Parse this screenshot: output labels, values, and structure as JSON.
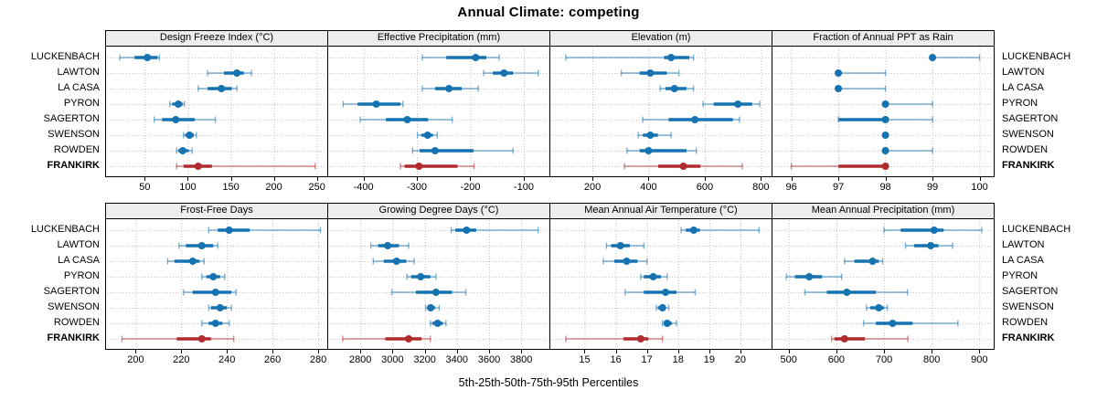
{
  "title": "Annual Climate: competing",
  "caption": "5th-25th-50th-75th-95th Percentiles",
  "percentiles": [
    "5th",
    "25th",
    "50th",
    "75th",
    "95th"
  ],
  "row_labels": [
    "LUCKENBACH",
    "LAWTON",
    "LA CASA",
    "PYRON",
    "SAGERTON",
    "SWENSON",
    "ROWDEN",
    "FRANKIRK"
  ],
  "highlight": "FRANKIRK",
  "colors": {
    "series": "#1673b1",
    "highlight": "#b12a2e",
    "grid": "#c3c3c3",
    "strip_bg": "#ededed",
    "border": "#000000"
  },
  "chart_data": [
    {
      "type": "dotplot-percentiles",
      "row": 0,
      "col": 0,
      "slug": "design-freeze-index",
      "title": "Design Freeze Index (°C)",
      "xlim": [
        5,
        262
      ],
      "ticks": [
        50,
        100,
        150,
        200,
        250
      ],
      "series": [
        {
          "name": "LUCKENBACH",
          "p": [
            21,
            38,
            53,
            65,
            67
          ]
        },
        {
          "name": "LAWTON",
          "p": [
            123,
            142,
            157,
            165,
            174
          ]
        },
        {
          "name": "LA CASA",
          "p": [
            112,
            123,
            139,
            151,
            157
          ]
        },
        {
          "name": "PYRON",
          "p": [
            79,
            82,
            89,
            94,
            96
          ]
        },
        {
          "name": "SAGERTON",
          "p": [
            61,
            70,
            86,
            108,
            132
          ]
        },
        {
          "name": "SWENSON",
          "p": [
            95,
            97,
            102,
            107,
            110
          ]
        },
        {
          "name": "ROWDEN",
          "p": [
            87,
            89,
            94,
            101,
            105
          ]
        },
        {
          "name": "FRANKIRK",
          "p": [
            87,
            95,
            112,
            128,
            248
          ]
        }
      ]
    },
    {
      "type": "dotplot-percentiles",
      "row": 0,
      "col": 1,
      "slug": "effective-precipitation",
      "title": "Effective Precipitation (mm)",
      "xlim": [
        -466,
        -52
      ],
      "ticks": [
        -400,
        -300,
        -200,
        -100
      ],
      "series": [
        {
          "name": "LUCKENBACH",
          "p": [
            -290,
            -245,
            -190,
            -170,
            -146
          ]
        },
        {
          "name": "LAWTON",
          "p": [
            -175,
            -158,
            -137,
            -120,
            -73
          ]
        },
        {
          "name": "LA CASA",
          "p": [
            -290,
            -266,
            -240,
            -216,
            -185
          ]
        },
        {
          "name": "PYRON",
          "p": [
            -438,
            -411,
            -376,
            -331,
            -326
          ]
        },
        {
          "name": "SAGERTON",
          "p": [
            -406,
            -358,
            -318,
            -279,
            -234
          ]
        },
        {
          "name": "SWENSON",
          "p": [
            -299,
            -292,
            -280,
            -270,
            -262
          ]
        },
        {
          "name": "ROWDEN",
          "p": [
            -308,
            -295,
            -266,
            -194,
            -120
          ]
        },
        {
          "name": "FRANKIRK",
          "p": [
            -331,
            -323,
            -296,
            -224,
            -193
          ]
        }
      ]
    },
    {
      "type": "dotplot-percentiles",
      "row": 0,
      "col": 2,
      "slug": "elevation",
      "title": "Elevation (m)",
      "xlim": [
        50,
        838
      ],
      "ticks": [
        200,
        400,
        600,
        800
      ],
      "series": [
        {
          "name": "LUCKENBACH",
          "p": [
            105,
            455,
            480,
            545,
            560
          ]
        },
        {
          "name": "LAWTON",
          "p": [
            303,
            368,
            406,
            465,
            508
          ]
        },
        {
          "name": "LA CASA",
          "p": [
            441,
            460,
            492,
            535,
            560
          ]
        },
        {
          "name": "PYRON",
          "p": [
            594,
            632,
            718,
            769,
            796
          ]
        },
        {
          "name": "SAGERTON",
          "p": [
            379,
            471,
            565,
            700,
            724
          ]
        },
        {
          "name": "SWENSON",
          "p": [
            363,
            380,
            406,
            433,
            480
          ]
        },
        {
          "name": "ROWDEN",
          "p": [
            323,
            368,
            400,
            535,
            570
          ]
        },
        {
          "name": "FRANKIRK",
          "p": [
            314,
            434,
            524,
            585,
            734
          ]
        }
      ]
    },
    {
      "type": "dotplot-percentiles",
      "row": 0,
      "col": 3,
      "slug": "fraction-ppt-rain",
      "title": "Fraction of Annual PPT as Rain",
      "xlim": [
        95.6,
        100.3
      ],
      "ticks": [
        96,
        97,
        98,
        99,
        100
      ],
      "series": [
        {
          "name": "LUCKENBACH",
          "p": [
            99,
            99,
            99,
            99,
            100
          ]
        },
        {
          "name": "LAWTON",
          "p": [
            97,
            97,
            97,
            97,
            98
          ]
        },
        {
          "name": "LA CASA",
          "p": [
            97,
            97,
            97,
            97,
            98
          ]
        },
        {
          "name": "PYRON",
          "p": [
            98,
            98,
            98,
            98,
            99
          ]
        },
        {
          "name": "SAGERTON",
          "p": [
            97,
            97,
            98,
            98,
            99
          ]
        },
        {
          "name": "SWENSON",
          "p": [
            98,
            98,
            98,
            98,
            98
          ]
        },
        {
          "name": "ROWDEN",
          "p": [
            98,
            98,
            98,
            98,
            99
          ]
        },
        {
          "name": "FRANKIRK",
          "p": [
            96,
            97,
            98,
            98,
            98
          ]
        }
      ]
    },
    {
      "type": "dotplot-percentiles",
      "row": 1,
      "col": 0,
      "slug": "frost-free-days",
      "title": "Frost-Free Days",
      "xlim": [
        187,
        284
      ],
      "ticks": [
        200,
        220,
        240,
        260,
        280
      ],
      "series": [
        {
          "name": "LUCKENBACH",
          "p": [
            232,
            236,
            241,
            250,
            281
          ]
        },
        {
          "name": "LAWTON",
          "p": [
            219,
            222,
            229,
            234,
            236
          ]
        },
        {
          "name": "LA CASA",
          "p": [
            214,
            217,
            225,
            228,
            230
          ]
        },
        {
          "name": "PYRON",
          "p": [
            229,
            231,
            234,
            237,
            239
          ]
        },
        {
          "name": "SAGERTON",
          "p": [
            221,
            225,
            235,
            242,
            244
          ]
        },
        {
          "name": "SWENSON",
          "p": [
            232,
            233,
            237,
            240,
            242
          ]
        },
        {
          "name": "ROWDEN",
          "p": [
            229,
            232,
            235,
            238,
            241
          ]
        },
        {
          "name": "FRANKIRK",
          "p": [
            194,
            218,
            229,
            233,
            243
          ]
        }
      ]
    },
    {
      "type": "dotplot-percentiles",
      "row": 1,
      "col": 1,
      "slug": "growing-degree-days",
      "title": "Growing Degree Days (°C)",
      "xlim": [
        2600,
        3975
      ],
      "ticks": [
        2800,
        3000,
        3200,
        3400,
        3600,
        3800
      ],
      "series": [
        {
          "name": "LUCKENBACH",
          "p": [
            3365,
            3390,
            3460,
            3520,
            3905
          ]
        },
        {
          "name": "LAWTON",
          "p": [
            2865,
            2910,
            2970,
            3040,
            3100
          ]
        },
        {
          "name": "LA CASA",
          "p": [
            2880,
            2945,
            3025,
            3085,
            3135
          ]
        },
        {
          "name": "PYRON",
          "p": [
            3090,
            3115,
            3175,
            3235,
            3270
          ]
        },
        {
          "name": "SAGERTON",
          "p": [
            2995,
            3145,
            3270,
            3370,
            3455
          ]
        },
        {
          "name": "SWENSON",
          "p": [
            3205,
            3215,
            3237,
            3265,
            3290
          ]
        },
        {
          "name": "ROWDEN",
          "p": [
            3235,
            3247,
            3280,
            3313,
            3332
          ]
        },
        {
          "name": "FRANKIRK",
          "p": [
            2690,
            2955,
            3100,
            3180,
            3235
          ]
        }
      ]
    },
    {
      "type": "dotplot-percentiles",
      "row": 1,
      "col": 2,
      "slug": "mean-annual-air-temperature",
      "title": "Mean Annual Air Temperature (°C)",
      "xlim": [
        13.9,
        21.0
      ],
      "ticks": [
        15,
        16,
        17,
        18,
        19,
        20
      ],
      "series": [
        {
          "name": "LUCKENBACH",
          "p": [
            18.1,
            18.25,
            18.5,
            18.7,
            20.6
          ]
        },
        {
          "name": "LAWTON",
          "p": [
            15.7,
            15.85,
            16.15,
            16.45,
            16.9
          ]
        },
        {
          "name": "LA CASA",
          "p": [
            15.6,
            15.95,
            16.35,
            16.7,
            17.0
          ]
        },
        {
          "name": "PYRON",
          "p": [
            16.8,
            16.9,
            17.2,
            17.45,
            17.65
          ]
        },
        {
          "name": "SAGERTON",
          "p": [
            16.3,
            16.9,
            17.6,
            17.95,
            18.55
          ]
        },
        {
          "name": "SWENSON",
          "p": [
            17.3,
            17.35,
            17.5,
            17.6,
            17.7
          ]
        },
        {
          "name": "ROWDEN",
          "p": [
            17.5,
            17.55,
            17.65,
            17.8,
            17.95
          ]
        },
        {
          "name": "FRANKIRK",
          "p": [
            14.4,
            16.25,
            16.8,
            17.05,
            17.5
          ]
        }
      ]
    },
    {
      "type": "dotplot-percentiles",
      "row": 1,
      "col": 3,
      "slug": "mean-annual-precipitation",
      "title": "Mean Annual Precipitation (mm)",
      "xlim": [
        466,
        930
      ],
      "ticks": [
        500,
        600,
        700,
        800,
        900
      ],
      "series": [
        {
          "name": "LUCKENBACH",
          "p": [
            700,
            735,
            805,
            825,
            905
          ]
        },
        {
          "name": "LAWTON",
          "p": [
            745,
            763,
            798,
            814,
            844
          ]
        },
        {
          "name": "LA CASA",
          "p": [
            617,
            638,
            676,
            689,
            697
          ]
        },
        {
          "name": "PYRON",
          "p": [
            495,
            513,
            543,
            570,
            611
          ]
        },
        {
          "name": "SAGERTON",
          "p": [
            534,
            580,
            622,
            683,
            749
          ]
        },
        {
          "name": "SWENSON",
          "p": [
            663,
            671,
            689,
            700,
            707
          ]
        },
        {
          "name": "ROWDEN",
          "p": [
            657,
            683,
            718,
            760,
            855
          ]
        },
        {
          "name": "FRANKIRK",
          "p": [
            590,
            596,
            617,
            660,
            750
          ]
        }
      ]
    }
  ]
}
